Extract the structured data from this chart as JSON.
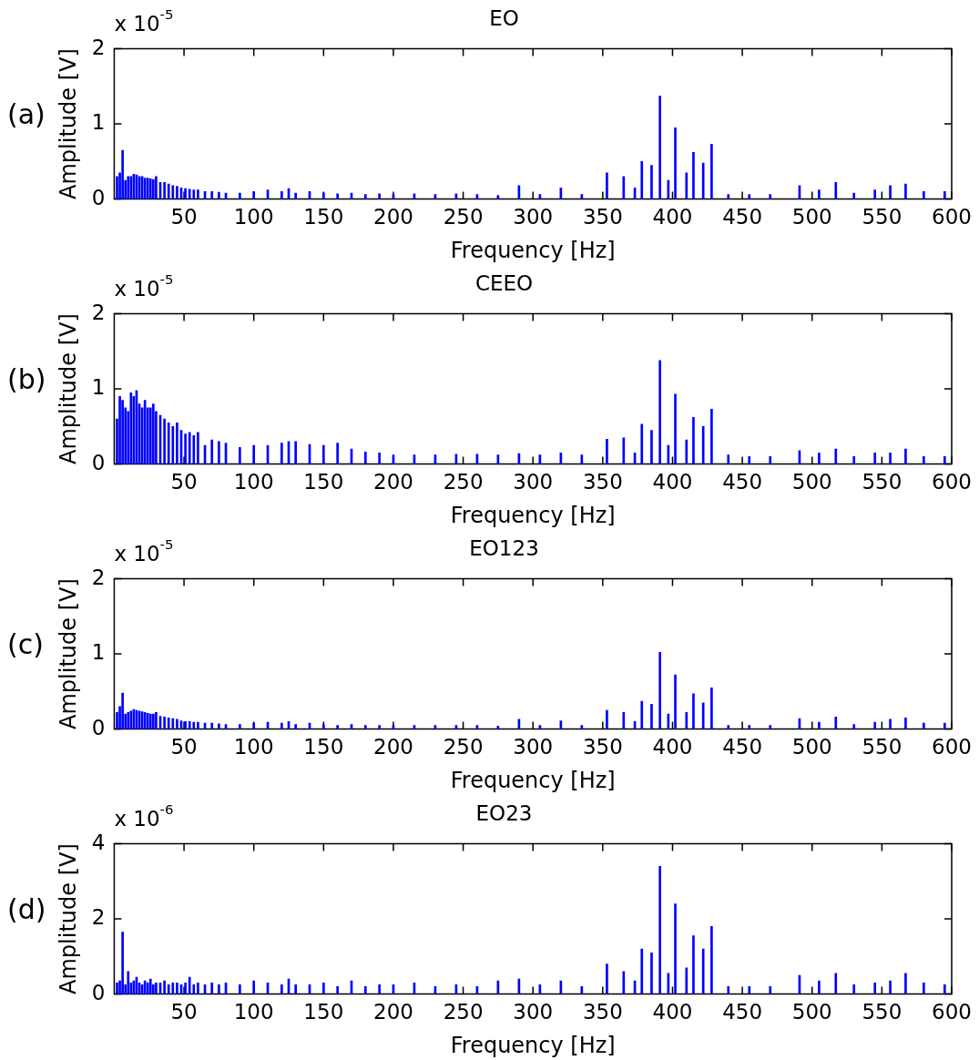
{
  "chart_data": [
    {
      "type": "bar",
      "title": "EO",
      "xlabel": "Frequency [Hz]",
      "ylabel": "Amplitude [V]",
      "annotations": [
        "(a)",
        "x 10$^{-5}$"
      ],
      "xlim": [
        0,
        600
      ],
      "xticks": [
        50,
        100,
        150,
        200,
        250,
        300,
        350,
        400,
        450,
        500,
        550,
        600
      ],
      "ylim": [
        0,
        2
      ],
      "yticks": [
        0,
        1,
        2
      ],
      "x": [
        2,
        4,
        6,
        8,
        10,
        12,
        14,
        16,
        18,
        20,
        22,
        24,
        26,
        28,
        30,
        33,
        36,
        39,
        42,
        45,
        48,
        51,
        54,
        57,
        60,
        65,
        70,
        75,
        80,
        90,
        100,
        110,
        120,
        125,
        130,
        140,
        150,
        160,
        170,
        180,
        190,
        200,
        215,
        230,
        245,
        260,
        275,
        290,
        305,
        320,
        335,
        353,
        365,
        373,
        378,
        385,
        391,
        397,
        402,
        410,
        415,
        422,
        428,
        440,
        455,
        470,
        491,
        505,
        517,
        530,
        545,
        556,
        567,
        580,
        595
      ],
      "series": [
        {
          "color": "#0000ff",
          "values": [
            0.3,
            0.35,
            0.65,
            0.25,
            0.3,
            0.3,
            0.33,
            0.32,
            0.3,
            0.3,
            0.28,
            0.28,
            0.27,
            0.26,
            0.3,
            0.22,
            0.22,
            0.2,
            0.18,
            0.17,
            0.15,
            0.14,
            0.13,
            0.12,
            0.12,
            0.1,
            0.1,
            0.09,
            0.08,
            0.08,
            0.1,
            0.12,
            0.1,
            0.14,
            0.08,
            0.1,
            0.08,
            0.07,
            0.08,
            0.06,
            0.07,
            0.06,
            0.07,
            0.06,
            0.07,
            0.06,
            0.05,
            0.18,
            0.06,
            0.15,
            0.06,
            0.35,
            0.3,
            0.15,
            0.5,
            0.45,
            1.37,
            0.25,
            0.95,
            0.35,
            0.62,
            0.48,
            0.73,
            0.06,
            0.06,
            0.06,
            0.18,
            0.12,
            0.22,
            0.08,
            0.12,
            0.18,
            0.2,
            0.1,
            0.1
          ]
        }
      ]
    },
    {
      "type": "bar",
      "title": "CEEO",
      "xlabel": "Frequency [Hz]",
      "ylabel": "Amplitude [V]",
      "annotations": [
        "(b)",
        "x 10$^{-5}$"
      ],
      "xlim": [
        0,
        600
      ],
      "xticks": [
        50,
        100,
        150,
        200,
        250,
        300,
        350,
        400,
        450,
        500,
        550,
        600
      ],
      "ylim": [
        0,
        2
      ],
      "yticks": [
        0,
        1,
        2
      ],
      "x": [
        2,
        4,
        6,
        8,
        10,
        12,
        14,
        16,
        18,
        20,
        22,
        24,
        26,
        28,
        30,
        33,
        36,
        39,
        42,
        45,
        48,
        51,
        54,
        57,
        60,
        65,
        70,
        75,
        80,
        90,
        100,
        110,
        120,
        125,
        130,
        140,
        150,
        160,
        170,
        180,
        190,
        200,
        215,
        230,
        245,
        260,
        275,
        290,
        305,
        320,
        335,
        353,
        365,
        373,
        378,
        385,
        391,
        397,
        402,
        410,
        415,
        422,
        428,
        440,
        455,
        470,
        491,
        505,
        517,
        530,
        545,
        556,
        567,
        580,
        595
      ],
      "series": [
        {
          "color": "#0000ff",
          "values": [
            0.6,
            0.9,
            0.85,
            0.75,
            0.7,
            0.95,
            0.9,
            0.98,
            0.8,
            0.75,
            0.85,
            0.75,
            0.75,
            0.8,
            0.7,
            0.65,
            0.6,
            0.55,
            0.5,
            0.55,
            0.45,
            0.4,
            0.42,
            0.38,
            0.42,
            0.25,
            0.32,
            0.3,
            0.28,
            0.22,
            0.25,
            0.25,
            0.28,
            0.3,
            0.3,
            0.26,
            0.25,
            0.28,
            0.2,
            0.16,
            0.15,
            0.12,
            0.12,
            0.12,
            0.13,
            0.13,
            0.12,
            0.14,
            0.12,
            0.15,
            0.12,
            0.33,
            0.35,
            0.15,
            0.53,
            0.45,
            1.38,
            0.25,
            0.93,
            0.32,
            0.62,
            0.5,
            0.73,
            0.12,
            0.1,
            0.1,
            0.18,
            0.15,
            0.2,
            0.1,
            0.15,
            0.15,
            0.2,
            0.1,
            0.1
          ]
        }
      ]
    },
    {
      "type": "bar",
      "title": "EO123",
      "xlabel": "Frequency [Hz]",
      "ylabel": "Amplitude [V]",
      "annotations": [
        "(c)",
        "x 10$^{-5}$"
      ],
      "xlim": [
        0,
        600
      ],
      "xticks": [
        50,
        100,
        150,
        200,
        250,
        300,
        350,
        400,
        450,
        500,
        550,
        600
      ],
      "ylim": [
        0,
        2
      ],
      "yticks": [
        0,
        1,
        2
      ],
      "x": [
        2,
        4,
        6,
        8,
        10,
        12,
        14,
        16,
        18,
        20,
        22,
        24,
        26,
        28,
        30,
        33,
        36,
        39,
        42,
        45,
        48,
        51,
        54,
        57,
        60,
        65,
        70,
        75,
        80,
        90,
        100,
        110,
        120,
        125,
        130,
        140,
        150,
        160,
        170,
        180,
        190,
        200,
        215,
        230,
        245,
        260,
        275,
        290,
        305,
        320,
        335,
        353,
        365,
        373,
        378,
        385,
        391,
        397,
        402,
        410,
        415,
        422,
        428,
        440,
        455,
        470,
        491,
        505,
        517,
        530,
        545,
        556,
        567,
        580,
        595
      ],
      "series": [
        {
          "color": "#0000ff",
          "values": [
            0.22,
            0.3,
            0.48,
            0.2,
            0.22,
            0.24,
            0.26,
            0.25,
            0.24,
            0.23,
            0.22,
            0.21,
            0.2,
            0.2,
            0.22,
            0.17,
            0.16,
            0.15,
            0.14,
            0.13,
            0.11,
            0.1,
            0.1,
            0.09,
            0.09,
            0.08,
            0.08,
            0.07,
            0.06,
            0.06,
            0.08,
            0.09,
            0.08,
            0.1,
            0.06,
            0.08,
            0.06,
            0.05,
            0.06,
            0.05,
            0.05,
            0.05,
            0.05,
            0.05,
            0.05,
            0.05,
            0.04,
            0.13,
            0.05,
            0.11,
            0.05,
            0.25,
            0.22,
            0.1,
            0.37,
            0.33,
            1.02,
            0.2,
            0.72,
            0.22,
            0.47,
            0.35,
            0.55,
            0.05,
            0.05,
            0.05,
            0.14,
            0.09,
            0.16,
            0.06,
            0.09,
            0.13,
            0.15,
            0.08,
            0.08
          ]
        }
      ]
    },
    {
      "type": "bar",
      "title": "EO23",
      "xlabel": "Frequency [Hz]",
      "ylabel": "Amplitude [V]",
      "annotations": [
        "(d)",
        "x 10$^{-6}$"
      ],
      "xlim": [
        0,
        600
      ],
      "xticks": [
        50,
        100,
        150,
        200,
        250,
        300,
        350,
        400,
        450,
        500,
        550,
        600
      ],
      "ylim": [
        0,
        4
      ],
      "yticks": [
        0,
        2,
        4
      ],
      "x": [
        2,
        4,
        6,
        8,
        10,
        12,
        14,
        16,
        18,
        20,
        22,
        24,
        26,
        28,
        30,
        33,
        36,
        39,
        42,
        45,
        48,
        51,
        54,
        57,
        60,
        65,
        70,
        75,
        80,
        90,
        100,
        110,
        120,
        125,
        130,
        140,
        150,
        160,
        170,
        180,
        190,
        200,
        215,
        230,
        245,
        260,
        275,
        290,
        305,
        320,
        335,
        353,
        365,
        373,
        378,
        385,
        391,
        397,
        402,
        410,
        415,
        422,
        428,
        440,
        455,
        470,
        491,
        505,
        517,
        530,
        545,
        556,
        567,
        580,
        595
      ],
      "series": [
        {
          "color": "#0000ff",
          "values": [
            0.3,
            0.35,
            1.65,
            0.25,
            0.6,
            0.3,
            0.35,
            0.45,
            0.3,
            0.25,
            0.35,
            0.3,
            0.4,
            0.25,
            0.3,
            0.3,
            0.35,
            0.25,
            0.3,
            0.3,
            0.25,
            0.3,
            0.45,
            0.25,
            0.3,
            0.25,
            0.3,
            0.25,
            0.3,
            0.25,
            0.35,
            0.3,
            0.25,
            0.4,
            0.25,
            0.25,
            0.3,
            0.2,
            0.35,
            0.2,
            0.25,
            0.25,
            0.3,
            0.2,
            0.25,
            0.2,
            0.35,
            0.4,
            0.25,
            0.35,
            0.2,
            0.8,
            0.6,
            0.35,
            1.2,
            1.1,
            3.4,
            0.55,
            2.4,
            0.7,
            1.55,
            1.2,
            1.8,
            0.2,
            0.2,
            0.2,
            0.5,
            0.35,
            0.55,
            0.25,
            0.3,
            0.35,
            0.55,
            0.3,
            0.25
          ]
        }
      ]
    }
  ]
}
